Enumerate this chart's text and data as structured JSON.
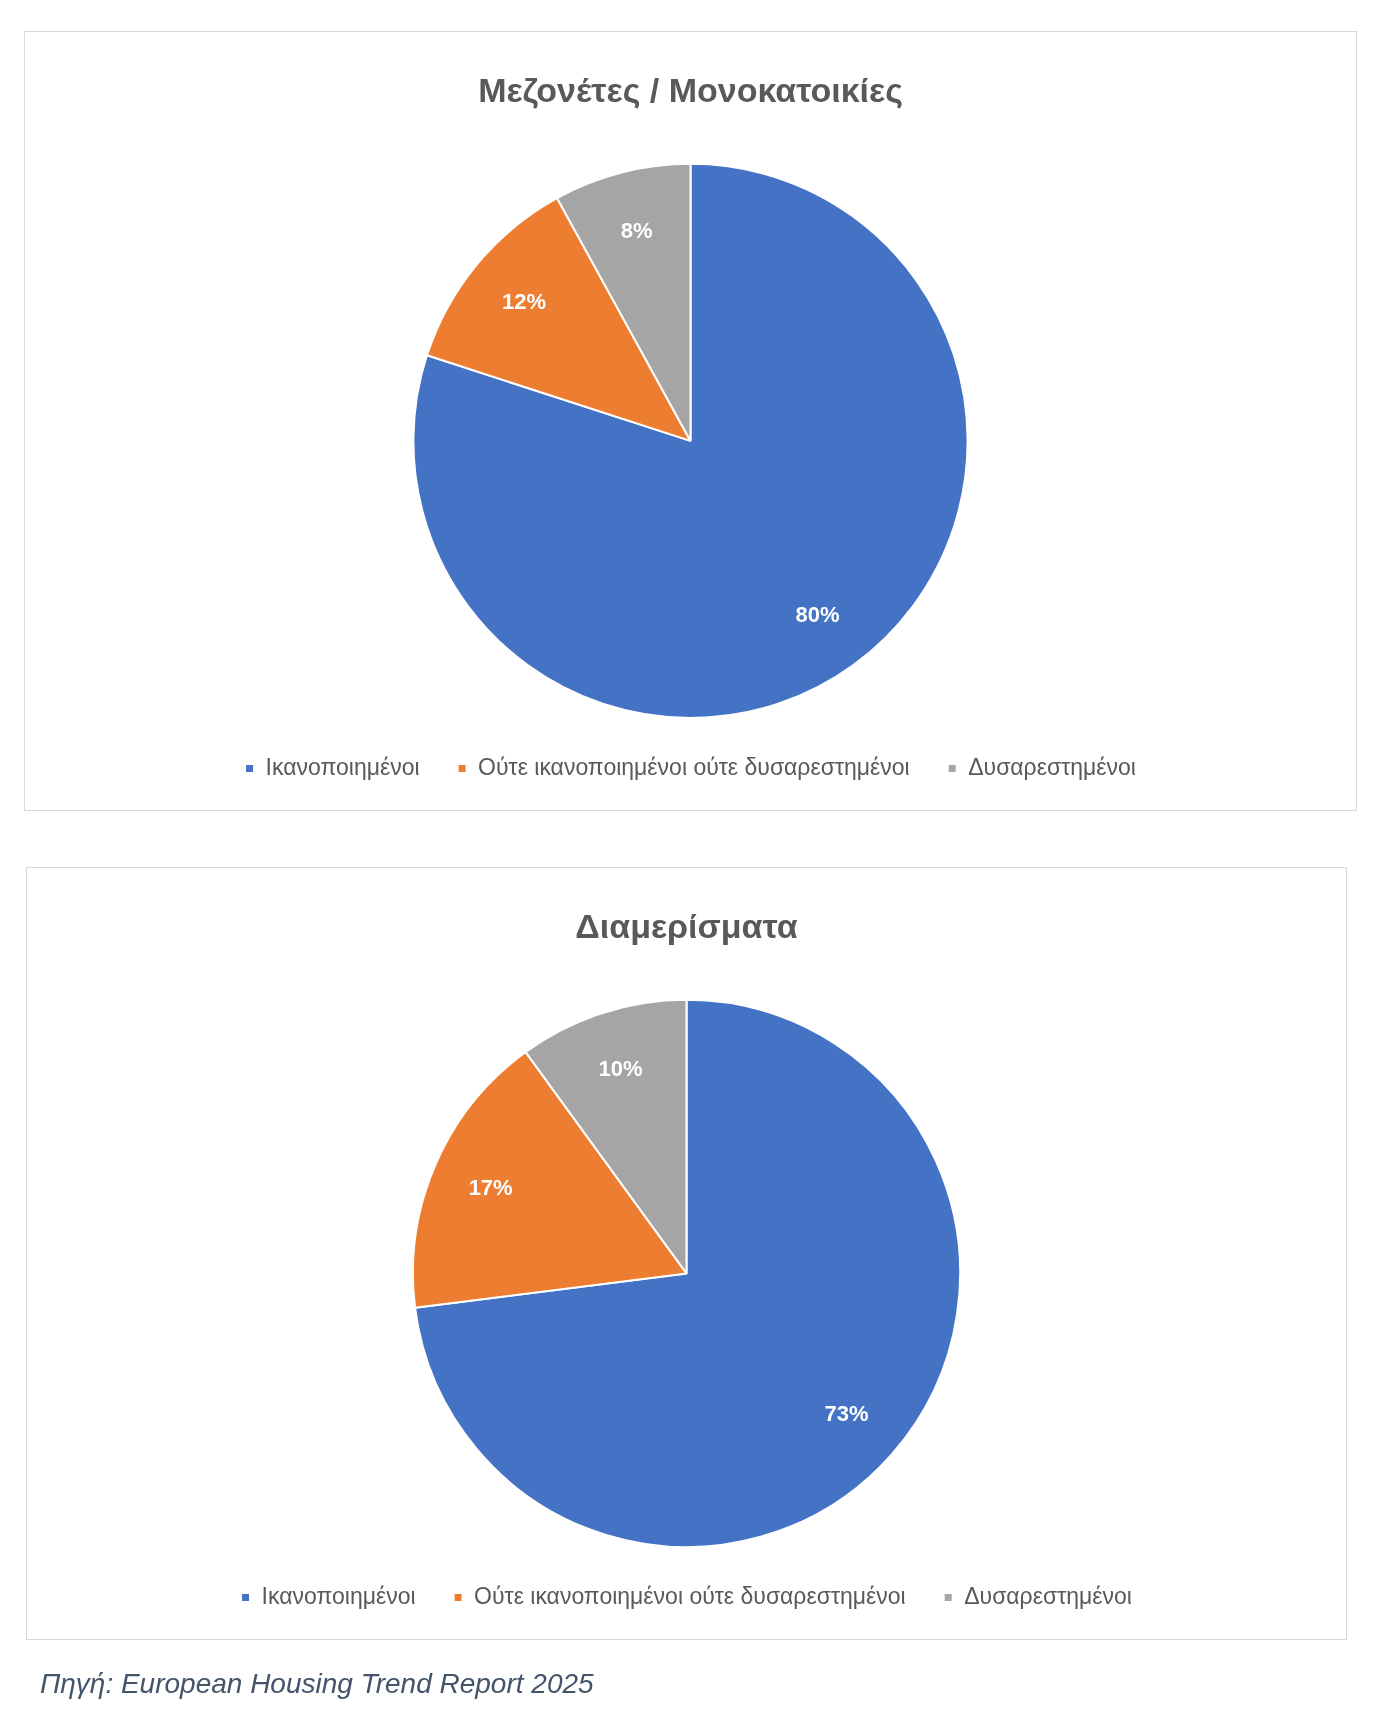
{
  "chart_data": [
    {
      "type": "pie",
      "title": "Μεζονέτες / Μονοκατοικίες",
      "categories": [
        "Ικανοποιημένοι",
        "Ούτε ικανοποιημένοι ούτε δυσαρεστημένοι",
        "Δυσαρεστημένοι"
      ],
      "values": [
        80,
        12,
        8
      ],
      "colors": [
        "#4472c4",
        "#ed7d31",
        "#a5a5a5"
      ],
      "value_labels": [
        "80%",
        "12%",
        "8%"
      ],
      "legend": "bottom"
    },
    {
      "type": "pie",
      "title": "Διαμερίσματα",
      "categories": [
        "Ικανοποιημένοι",
        "Ούτε ικανοποιημένοι ούτε δυσαρεστημένοι",
        "Δυσαρεστημένοι"
      ],
      "values": [
        73,
        17,
        10
      ],
      "colors": [
        "#4472c4",
        "#ed7d31",
        "#a5a5a5"
      ],
      "value_labels": [
        "73%",
        "17%",
        "10%"
      ],
      "legend": "bottom",
      "annotations": [
        "Πηγή: European Housing Trend Report 2025"
      ]
    }
  ]
}
